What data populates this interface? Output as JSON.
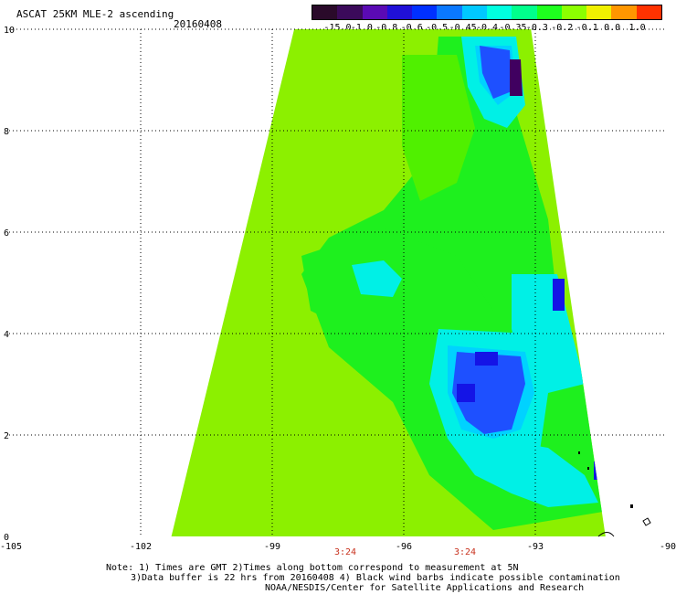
{
  "header": {
    "title": "ASCAT 25KM MLE-2 ascending",
    "date": "20160408"
  },
  "colorbar": {
    "labels": [
      "-15.0",
      "-1.0",
      "-0.8",
      "-0.6",
      "-0.5",
      "-0.45",
      "-0.4",
      "-0.35",
      "-0.3",
      "-0.2",
      "-0.1",
      "0.0",
      "1.0"
    ],
    "colors": [
      "#2a0a2a",
      "#3b0a5a",
      "#5a0ab4",
      "#2010d8",
      "#0030ff",
      "#0a78ff",
      "#00c8ff",
      "#00ffe0",
      "#00ff8c",
      "#1eff1e",
      "#8cff00",
      "#f0f000",
      "#ff9600",
      "#ff3200"
    ]
  },
  "axes": {
    "y_ticks": [
      "10",
      "8",
      "6",
      "4",
      "2",
      "0"
    ],
    "x_ticks": [
      "-105",
      "-102",
      "-99",
      "-96",
      "-93",
      "-90"
    ],
    "times": [
      "3:24",
      "3:24"
    ]
  },
  "notes": {
    "line1": "Note: 1) Times are GMT 2)Times along bottom correspond to measurement at 5N",
    "line2": "3)Data buffer is 22 hrs from 20160408 4) Black wind barbs indicate possible contamination",
    "line3": "NOAA/NESDIS/Center for Satellite Applications and Research"
  },
  "map": {
    "lon_range": [
      -105,
      -90
    ],
    "lat_range": [
      0,
      10
    ],
    "swath_lon_west": [
      -101.3,
      -98.5
    ],
    "swath_lon_east": [
      -91.4,
      -93.1
    ],
    "colors": {
      "base": "#8cf000",
      "green": "#1ef01e",
      "lightgreen": "#50f000",
      "cyan": "#00f0e6",
      "cyan2": "#00d2ff",
      "blue": "#1e50ff",
      "darkblue": "#1414e6",
      "purple": "#400060"
    }
  }
}
